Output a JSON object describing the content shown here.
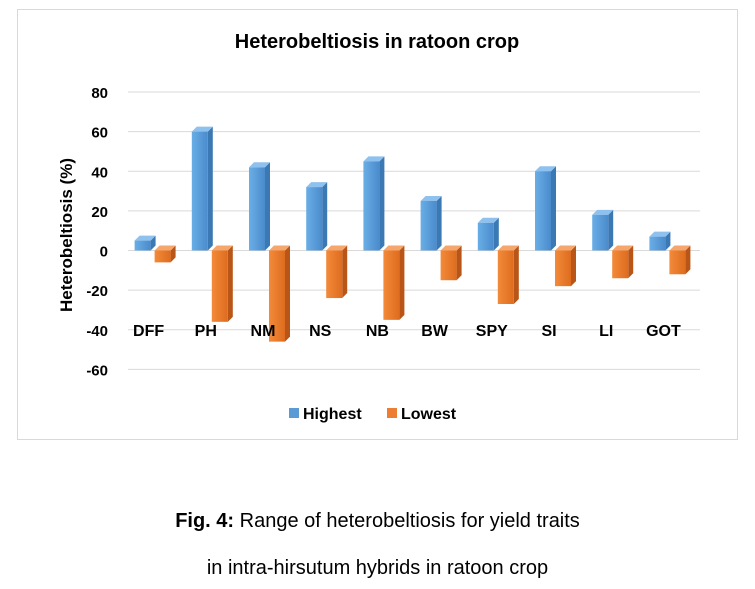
{
  "chart_data": {
    "type": "bar",
    "title": "Heterobeltiosis in ratoon crop",
    "ylabel": "Heterobeltiosis (%)",
    "xlabel": "",
    "ylim": [
      -60,
      80
    ],
    "yticks": [
      80,
      60,
      40,
      20,
      0,
      -20,
      -40,
      -60
    ],
    "categories": [
      "DFF",
      "PH",
      "NM",
      "NS",
      "NB",
      "BW",
      "SPY",
      "SI",
      "LI",
      "GOT"
    ],
    "series": [
      {
        "name": "Highest",
        "color": "#5b9bd5",
        "values": [
          5,
          60,
          42,
          32,
          45,
          25,
          14,
          40,
          18,
          7
        ]
      },
      {
        "name": "Lowest",
        "color": "#ed7d31",
        "values": [
          -6,
          -36,
          -46,
          -24,
          -35,
          -15,
          -27,
          -18,
          -14,
          -12
        ]
      }
    ],
    "legend": "bottom",
    "grid": true
  },
  "caption": {
    "fig_label": "Fig. 4:",
    "line1_text": " Range of heterobeltiosis for yield traits",
    "line2_text": "in intra-hirsutum hybrids in ratoon crop"
  }
}
